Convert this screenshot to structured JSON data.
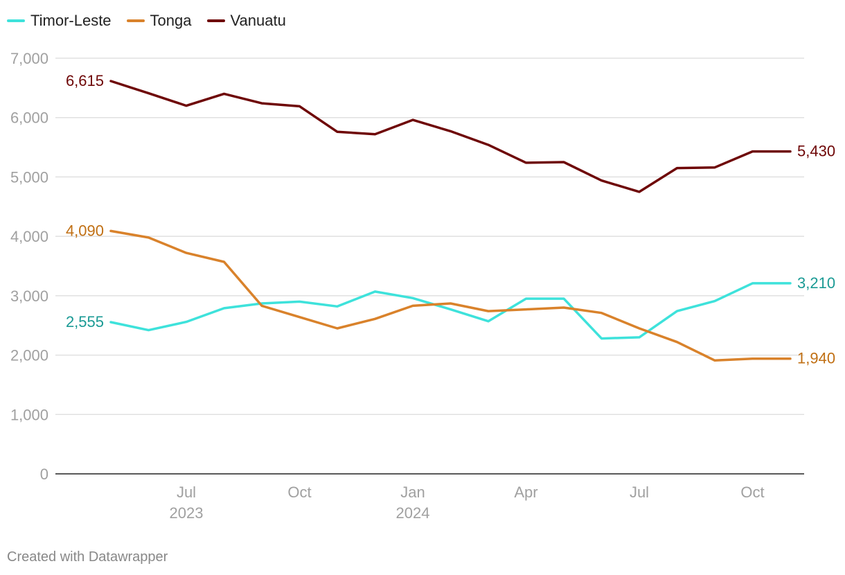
{
  "chart_data": {
    "type": "line",
    "x": [
      "2023-05",
      "2023-06",
      "2023-07",
      "2023-08",
      "2023-09",
      "2023-10",
      "2023-11",
      "2023-12",
      "2024-01",
      "2024-02",
      "2024-03",
      "2024-04",
      "2024-05",
      "2024-06",
      "2024-07",
      "2024-08",
      "2024-09",
      "2024-10",
      "2024-11"
    ],
    "series": [
      {
        "name": "Timor-Leste",
        "color": "#3ee2db",
        "label_color": "#1a9a94",
        "values": [
          2555,
          2420,
          2560,
          2790,
          2870,
          2900,
          2820,
          3070,
          2960,
          2770,
          2570,
          2950,
          2950,
          2280,
          2300,
          2740,
          2910,
          3210,
          3210
        ]
      },
      {
        "name": "Tonga",
        "color": "#d9822b",
        "label_color": "#c06f13",
        "values": [
          4090,
          3980,
          3720,
          3570,
          2830,
          2640,
          2450,
          2610,
          2830,
          2870,
          2740,
          2770,
          2800,
          2710,
          2450,
          2220,
          1910,
          1940,
          1940
        ]
      },
      {
        "name": "Vanuatu",
        "color": "#6e0606",
        "label_color": "#6e0606",
        "values": [
          6615,
          6410,
          6200,
          6400,
          6240,
          6190,
          5760,
          5720,
          5960,
          5770,
          5540,
          5240,
          5250,
          4940,
          4750,
          5150,
          5160,
          5430,
          5430
        ]
      }
    ],
    "start_labels": [
      "2,555",
      "4,090",
      "6,615"
    ],
    "end_labels": [
      "3,210",
      "1,940",
      "5,430"
    ],
    "yticks": [
      0,
      1000,
      2000,
      3000,
      4000,
      5000,
      6000,
      7000
    ],
    "ytick_labels": [
      "0",
      "1,000",
      "2,000",
      "3,000",
      "4,000",
      "5,000",
      "6,000",
      "7,000"
    ],
    "ylim": [
      0,
      7000
    ],
    "xticks": [
      {
        "date": "2023-07",
        "label": "Jul",
        "year": "2023"
      },
      {
        "date": "2023-10",
        "label": "Oct",
        "year": ""
      },
      {
        "date": "2024-01",
        "label": "Jan",
        "year": "2024"
      },
      {
        "date": "2024-04",
        "label": "Apr",
        "year": ""
      },
      {
        "date": "2024-07",
        "label": "Jul",
        "year": ""
      },
      {
        "date": "2024-10",
        "label": "Oct",
        "year": ""
      }
    ],
    "grid": true,
    "legend_position": "top-left"
  },
  "footer": "Created with Datawrapper"
}
